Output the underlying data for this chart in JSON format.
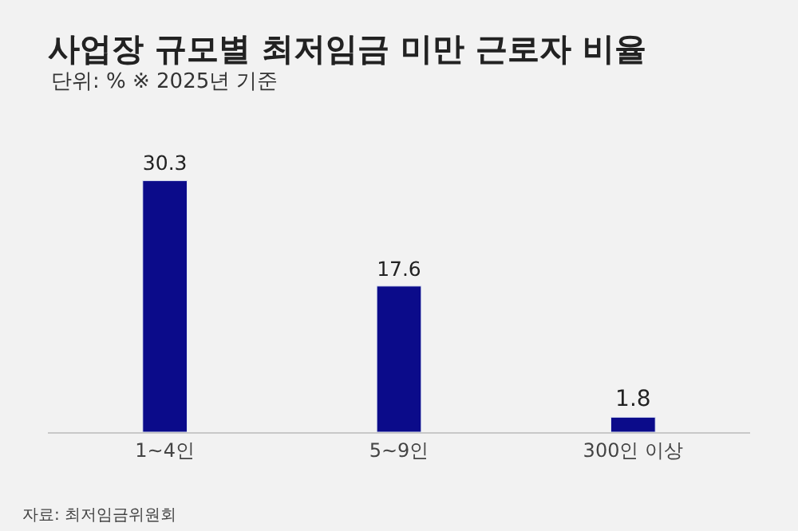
{
  "chart_data": {
    "type": "bar",
    "title": "사업장 규모별 최저임금 미만 근로자 비율",
    "subtitle": "단위: % ※ 2025년 기준",
    "categories": [
      "1~4인",
      "5~9인",
      "300인 이상"
    ],
    "values": [
      30.3,
      17.6,
      1.8
    ],
    "color": "#0b0b8a",
    "data_labels": true,
    "grid": false,
    "legend": false,
    "annotations": [
      "자료: 최저임금위원회"
    ]
  }
}
